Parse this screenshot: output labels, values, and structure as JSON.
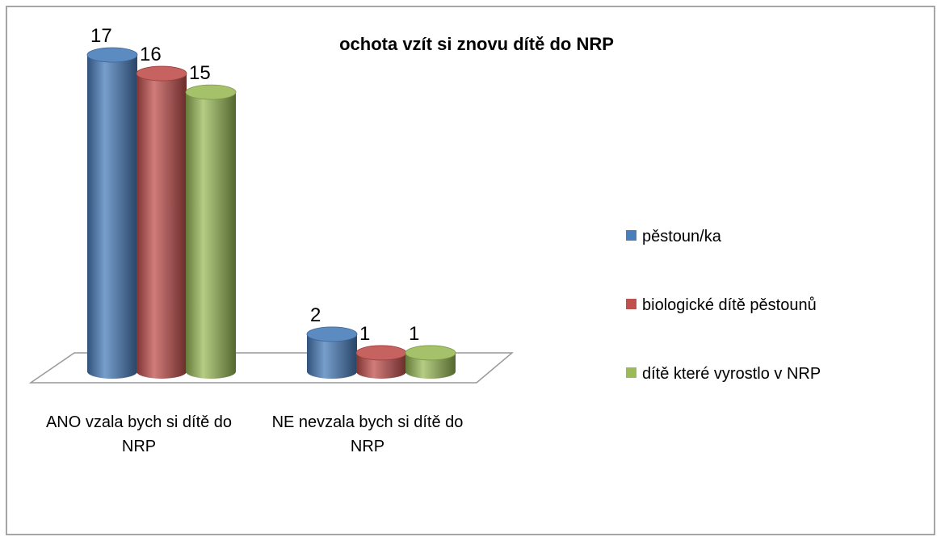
{
  "chart_data": {
    "type": "bar3d",
    "title": "ochota vzít si znovu dítě do NRP",
    "categories": [
      "ANO vzala bych si dítě do NRP",
      "NE nevzala bych si dítě do NRP"
    ],
    "series": [
      {
        "name": "pěstoun/ka",
        "color": "#4a7ebb",
        "values": [
          17,
          2
        ]
      },
      {
        "name": "biologické dítě pěstounů",
        "color": "#c0504d",
        "values": [
          16,
          1
        ]
      },
      {
        "name": "dítě které vyrostlo v NRP",
        "color": "#9bbb59",
        "values": [
          15,
          1
        ]
      }
    ],
    "legend": "right"
  }
}
